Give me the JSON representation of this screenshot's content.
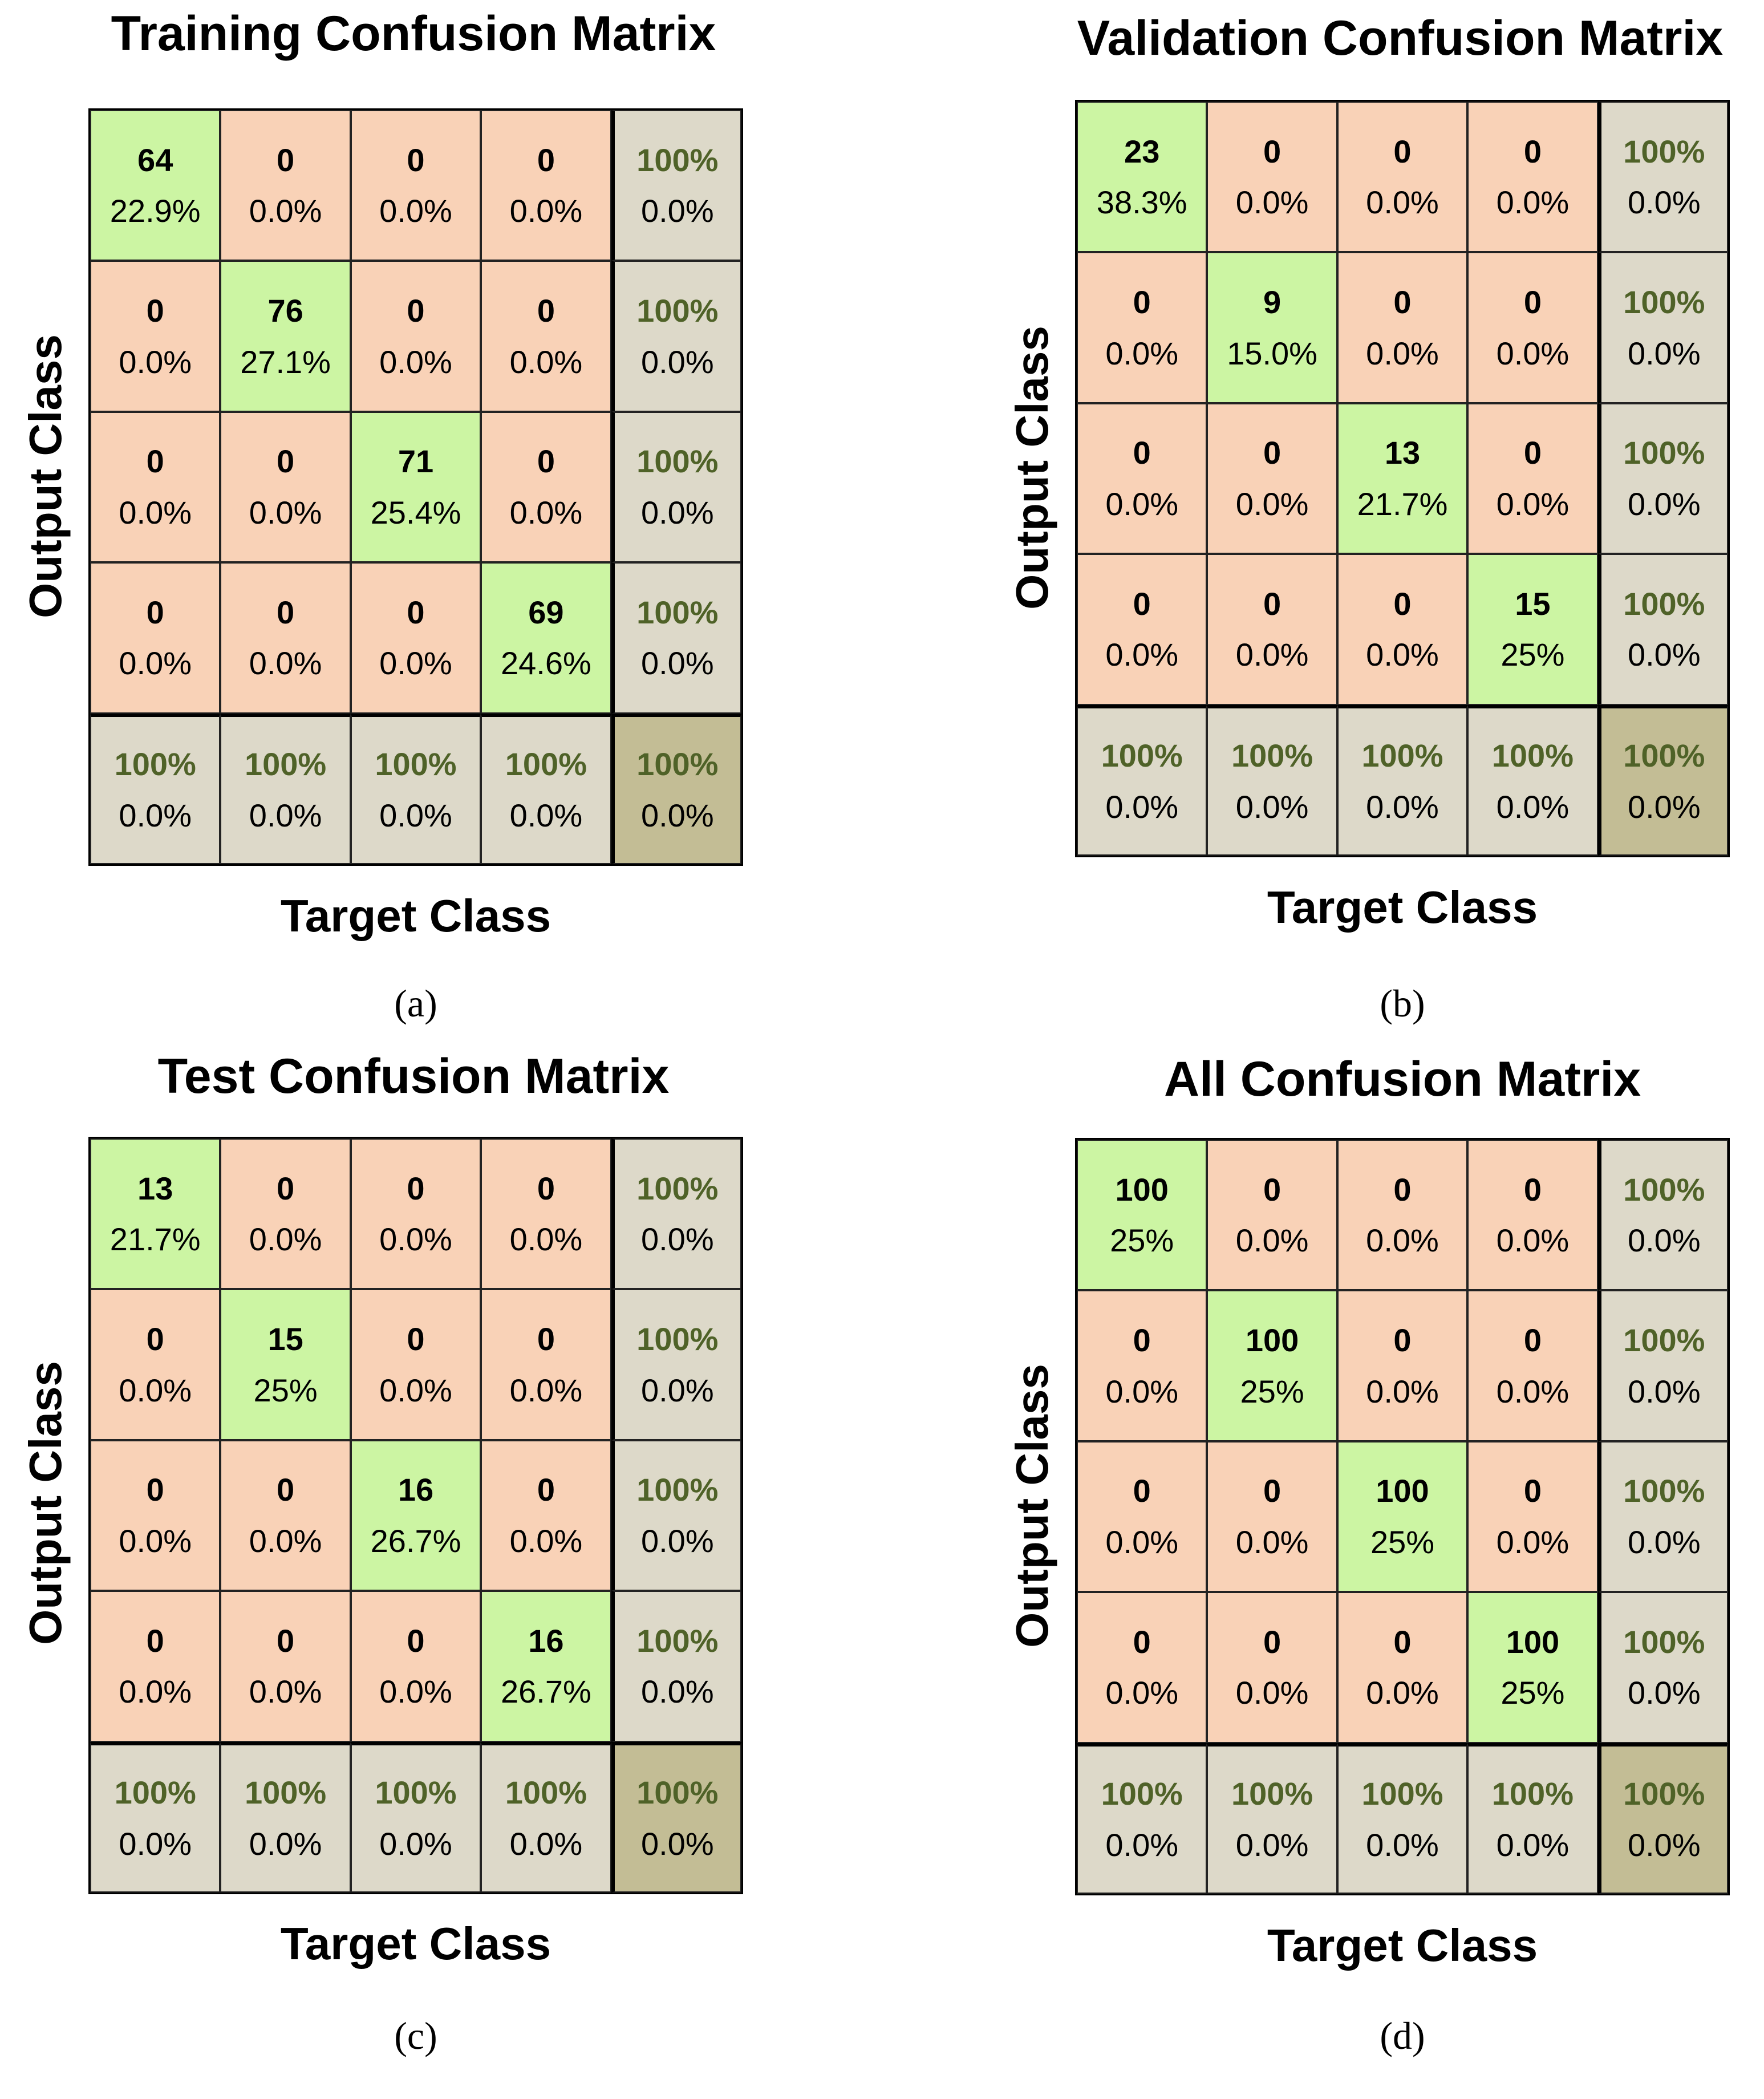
{
  "chart_data": [
    {
      "type": "table",
      "title": "Training Confusion Matrix",
      "xlabel": "Target Class",
      "ylabel": "Output Class",
      "caption": "(a)",
      "cells": [
        [
          {
            "count": "64",
            "pct": "22.9%"
          },
          {
            "count": "0",
            "pct": "0.0%"
          },
          {
            "count": "0",
            "pct": "0.0%"
          },
          {
            "count": "0",
            "pct": "0.0%"
          },
          {
            "count": "100%",
            "pct": "0.0%"
          }
        ],
        [
          {
            "count": "0",
            "pct": "0.0%"
          },
          {
            "count": "76",
            "pct": "27.1%"
          },
          {
            "count": "0",
            "pct": "0.0%"
          },
          {
            "count": "0",
            "pct": "0.0%"
          },
          {
            "count": "100%",
            "pct": "0.0%"
          }
        ],
        [
          {
            "count": "0",
            "pct": "0.0%"
          },
          {
            "count": "0",
            "pct": "0.0%"
          },
          {
            "count": "71",
            "pct": "25.4%"
          },
          {
            "count": "0",
            "pct": "0.0%"
          },
          {
            "count": "100%",
            "pct": "0.0%"
          }
        ],
        [
          {
            "count": "0",
            "pct": "0.0%"
          },
          {
            "count": "0",
            "pct": "0.0%"
          },
          {
            "count": "0",
            "pct": "0.0%"
          },
          {
            "count": "69",
            "pct": "24.6%"
          },
          {
            "count": "100%",
            "pct": "0.0%"
          }
        ],
        [
          {
            "count": "100%",
            "pct": "0.0%"
          },
          {
            "count": "100%",
            "pct": "0.0%"
          },
          {
            "count": "100%",
            "pct": "0.0%"
          },
          {
            "count": "100%",
            "pct": "0.0%"
          },
          {
            "count": "100%",
            "pct": "0.0%"
          }
        ]
      ]
    },
    {
      "type": "table",
      "title": "Validation Confusion Matrix",
      "xlabel": "Target Class",
      "ylabel": "Output Class",
      "caption": "(b)",
      "cells": [
        [
          {
            "count": "23",
            "pct": "38.3%"
          },
          {
            "count": "0",
            "pct": "0.0%"
          },
          {
            "count": "0",
            "pct": "0.0%"
          },
          {
            "count": "0",
            "pct": "0.0%"
          },
          {
            "count": "100%",
            "pct": "0.0%"
          }
        ],
        [
          {
            "count": "0",
            "pct": "0.0%"
          },
          {
            "count": "9",
            "pct": "15.0%"
          },
          {
            "count": "0",
            "pct": "0.0%"
          },
          {
            "count": "0",
            "pct": "0.0%"
          },
          {
            "count": "100%",
            "pct": "0.0%"
          }
        ],
        [
          {
            "count": "0",
            "pct": "0.0%"
          },
          {
            "count": "0",
            "pct": "0.0%"
          },
          {
            "count": "13",
            "pct": "21.7%"
          },
          {
            "count": "0",
            "pct": "0.0%"
          },
          {
            "count": "100%",
            "pct": "0.0%"
          }
        ],
        [
          {
            "count": "0",
            "pct": "0.0%"
          },
          {
            "count": "0",
            "pct": "0.0%"
          },
          {
            "count": "0",
            "pct": "0.0%"
          },
          {
            "count": "15",
            "pct": "25%"
          },
          {
            "count": "100%",
            "pct": "0.0%"
          }
        ],
        [
          {
            "count": "100%",
            "pct": "0.0%"
          },
          {
            "count": "100%",
            "pct": "0.0%"
          },
          {
            "count": "100%",
            "pct": "0.0%"
          },
          {
            "count": "100%",
            "pct": "0.0%"
          },
          {
            "count": "100%",
            "pct": "0.0%"
          }
        ]
      ]
    },
    {
      "type": "table",
      "title": "Test Confusion Matrix",
      "xlabel": "Target Class",
      "ylabel": "Output Class",
      "caption": "(c)",
      "cells": [
        [
          {
            "count": "13",
            "pct": "21.7%"
          },
          {
            "count": "0",
            "pct": "0.0%"
          },
          {
            "count": "0",
            "pct": "0.0%"
          },
          {
            "count": "0",
            "pct": "0.0%"
          },
          {
            "count": "100%",
            "pct": "0.0%"
          }
        ],
        [
          {
            "count": "0",
            "pct": "0.0%"
          },
          {
            "count": "15",
            "pct": "25%"
          },
          {
            "count": "0",
            "pct": "0.0%"
          },
          {
            "count": "0",
            "pct": "0.0%"
          },
          {
            "count": "100%",
            "pct": "0.0%"
          }
        ],
        [
          {
            "count": "0",
            "pct": "0.0%"
          },
          {
            "count": "0",
            "pct": "0.0%"
          },
          {
            "count": "16",
            "pct": "26.7%"
          },
          {
            "count": "0",
            "pct": "0.0%"
          },
          {
            "count": "100%",
            "pct": "0.0%"
          }
        ],
        [
          {
            "count": "0",
            "pct": "0.0%"
          },
          {
            "count": "0",
            "pct": "0.0%"
          },
          {
            "count": "0",
            "pct": "0.0%"
          },
          {
            "count": "16",
            "pct": "26.7%"
          },
          {
            "count": "100%",
            "pct": "0.0%"
          }
        ],
        [
          {
            "count": "100%",
            "pct": "0.0%"
          },
          {
            "count": "100%",
            "pct": "0.0%"
          },
          {
            "count": "100%",
            "pct": "0.0%"
          },
          {
            "count": "100%",
            "pct": "0.0%"
          },
          {
            "count": "100%",
            "pct": "0.0%"
          }
        ]
      ]
    },
    {
      "type": "table",
      "title": "All Confusion Matrix",
      "xlabel": "Target Class",
      "ylabel": "Output Class",
      "caption": "(d)",
      "cells": [
        [
          {
            "count": "100",
            "pct": "25%"
          },
          {
            "count": "0",
            "pct": "0.0%"
          },
          {
            "count": "0",
            "pct": "0.0%"
          },
          {
            "count": "0",
            "pct": "0.0%"
          },
          {
            "count": "100%",
            "pct": "0.0%"
          }
        ],
        [
          {
            "count": "0",
            "pct": "0.0%"
          },
          {
            "count": "100",
            "pct": "25%"
          },
          {
            "count": "0",
            "pct": "0.0%"
          },
          {
            "count": "0",
            "pct": "0.0%"
          },
          {
            "count": "100%",
            "pct": "0.0%"
          }
        ],
        [
          {
            "count": "0",
            "pct": "0.0%"
          },
          {
            "count": "0",
            "pct": "0.0%"
          },
          {
            "count": "100",
            "pct": "25%"
          },
          {
            "count": "0",
            "pct": "0.0%"
          },
          {
            "count": "100%",
            "pct": "0.0%"
          }
        ],
        [
          {
            "count": "0",
            "pct": "0.0%"
          },
          {
            "count": "0",
            "pct": "0.0%"
          },
          {
            "count": "0",
            "pct": "0.0%"
          },
          {
            "count": "100",
            "pct": "25%"
          },
          {
            "count": "100%",
            "pct": "0.0%"
          }
        ],
        [
          {
            "count": "100%",
            "pct": "0.0%"
          },
          {
            "count": "100%",
            "pct": "0.0%"
          },
          {
            "count": "100%",
            "pct": "0.0%"
          },
          {
            "count": "100%",
            "pct": "0.0%"
          },
          {
            "count": "100%",
            "pct": "0.0%"
          }
        ]
      ]
    }
  ],
  "colors": {
    "diagonal": "#ccf5a3",
    "off_diagonal": "#f9d2b7",
    "summary": "#ddd9c9",
    "overall": "#c3bd95",
    "summary_text": "#4f6228"
  }
}
